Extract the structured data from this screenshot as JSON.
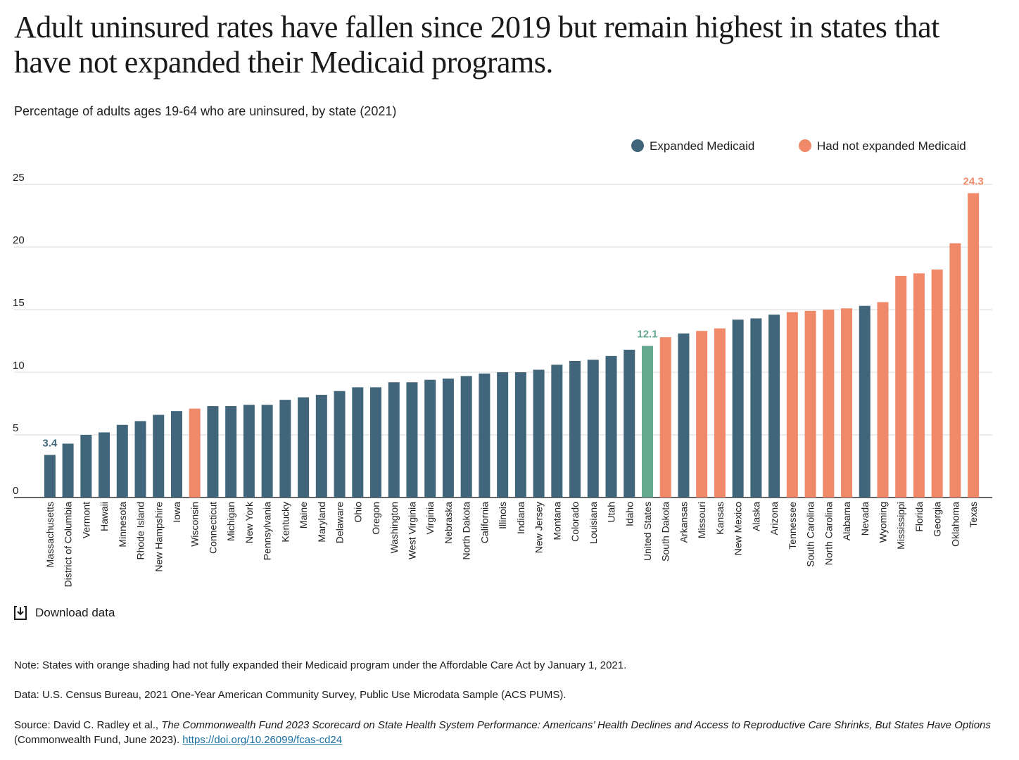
{
  "title": "Adult uninsured rates have fallen since 2019 but remain highest in states that have not expanded their Medicaid programs.",
  "subtitle": "Percentage of adults ages 19-64 who are uninsured, by state (2021)",
  "download_label": "Download data",
  "notes": {
    "note": "Note: States with orange shading had not fully expanded their Medicaid program under the Affordable Care Act by January 1, 2021.",
    "data": "Data: U.S. Census Bureau, 2021 One-Year American Community Survey, Public Use Microdata Sample (ACS PUMS).",
    "source_prefix": "Source: David C. Radley et al., ",
    "source_title": "The Commonwealth Fund 2023 Scorecard on State Health System Performance: Americans’ Health Declines and Access to Reproductive Care Shrinks, But States Have Options",
    "source_suffix": " (Commonwealth Fund, June 2023). ",
    "source_link": "https://doi.org/10.26099/fcas-cd24"
  },
  "colors": {
    "expanded": "#41657a",
    "not_expanded": "#f0896a",
    "us": "#65a890",
    "grid": "#d9d9d9",
    "axis": "#333333"
  },
  "chart_data": {
    "type": "bar",
    "title": "Percentage of adults ages 19-64 who are uninsured, by state (2021)",
    "xlabel": "",
    "ylabel": "",
    "ylim": [
      0,
      25
    ],
    "yticks": [
      0,
      5,
      10,
      15,
      20,
      25
    ],
    "grid": true,
    "legend_position": "top-right",
    "legend": [
      {
        "key": "expanded",
        "label": "Expanded Medicaid"
      },
      {
        "key": "not_expanded",
        "label": "Had not expanded Medicaid"
      }
    ],
    "categories": [
      "Massachusetts",
      "District of Columbia",
      "Vermont",
      "Hawaii",
      "Minnesota",
      "Rhode Island",
      "New Hampshire",
      "Iowa",
      "Wisconsin",
      "Connecticut",
      "Michigan",
      "New York",
      "Pennsylvania",
      "Kentucky",
      "Maine",
      "Maryland",
      "Delaware",
      "Ohio",
      "Oregon",
      "Washington",
      "West Virginia",
      "Virginia",
      "Nebraska",
      "North Dakota",
      "California",
      "Illinois",
      "Indiana",
      "New Jersey",
      "Montana",
      "Colorado",
      "Louisiana",
      "Utah",
      "Idaho",
      "United States",
      "South Dakota",
      "Arkansas",
      "Missouri",
      "Kansas",
      "New Mexico",
      "Alaska",
      "Arizona",
      "Tennessee",
      "South Carolina",
      "North Carolina",
      "Alabama",
      "Nevada",
      "Wyoming",
      "Mississippi",
      "Florida",
      "Georgia",
      "Oklahoma",
      "Texas"
    ],
    "values": [
      3.4,
      4.3,
      5.0,
      5.2,
      5.8,
      6.1,
      6.6,
      6.9,
      7.1,
      7.3,
      7.3,
      7.4,
      7.4,
      7.8,
      8.0,
      8.2,
      8.5,
      8.8,
      8.8,
      9.2,
      9.2,
      9.4,
      9.5,
      9.7,
      9.9,
      10.0,
      10.0,
      10.2,
      10.6,
      10.9,
      11.0,
      11.3,
      11.8,
      12.1,
      12.8,
      13.1,
      13.3,
      13.5,
      14.2,
      14.3,
      14.6,
      14.8,
      14.9,
      15.0,
      15.1,
      15.3,
      15.6,
      17.7,
      17.9,
      18.2,
      20.3,
      24.3
    ],
    "groups": [
      "expanded",
      "expanded",
      "expanded",
      "expanded",
      "expanded",
      "expanded",
      "expanded",
      "expanded",
      "not_expanded",
      "expanded",
      "expanded",
      "expanded",
      "expanded",
      "expanded",
      "expanded",
      "expanded",
      "expanded",
      "expanded",
      "expanded",
      "expanded",
      "expanded",
      "expanded",
      "expanded",
      "expanded",
      "expanded",
      "expanded",
      "expanded",
      "expanded",
      "expanded",
      "expanded",
      "expanded",
      "expanded",
      "expanded",
      "us",
      "not_expanded",
      "expanded",
      "not_expanded",
      "not_expanded",
      "expanded",
      "expanded",
      "expanded",
      "not_expanded",
      "not_expanded",
      "not_expanded",
      "not_expanded",
      "expanded",
      "not_expanded",
      "not_expanded",
      "not_expanded",
      "not_expanded",
      "not_expanded",
      "not_expanded"
    ],
    "data_labels": [
      {
        "category": "Massachusetts",
        "text": "3.4",
        "group": "expanded"
      },
      {
        "category": "United States",
        "text": "12.1",
        "group": "us"
      },
      {
        "category": "Texas",
        "text": "24.3",
        "group": "not_expanded"
      }
    ]
  }
}
